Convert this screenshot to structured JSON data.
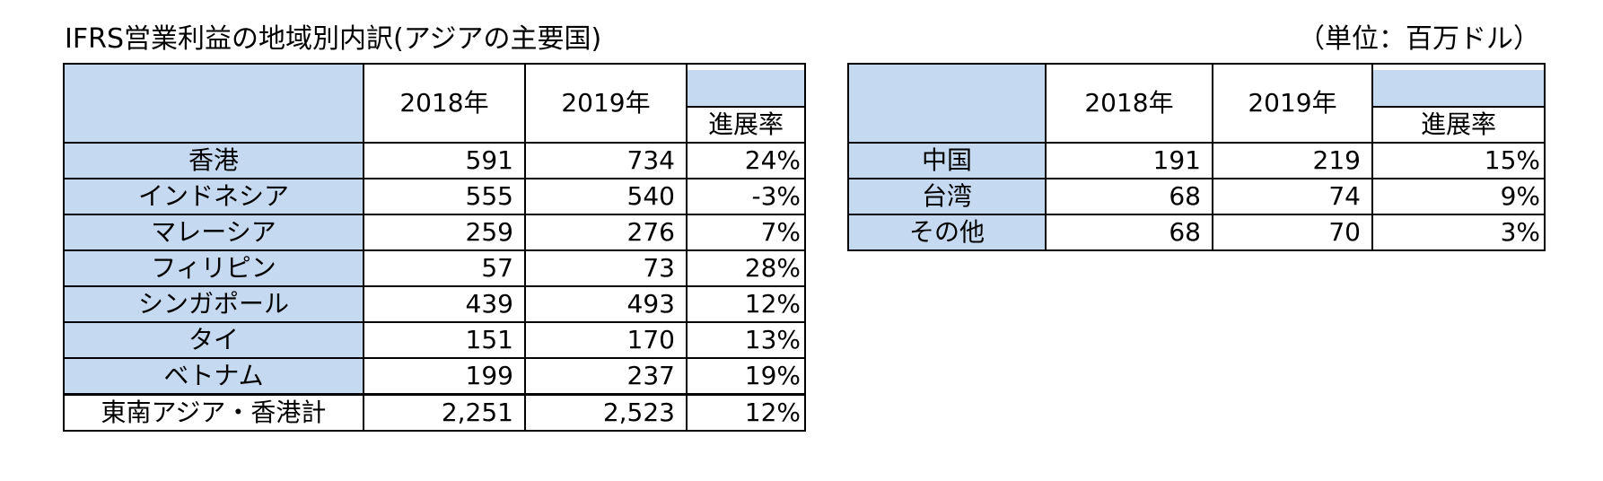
{
  "title": "IFRS営業利益の地域別内訳(アジアの主要国)",
  "unit": "（単位：百万ドル）",
  "headers": {
    "y2018": "2018年",
    "y2019": "2019年",
    "rate": "進展率"
  },
  "left_table": {
    "rows": [
      {
        "name": "香港",
        "v2018": "591",
        "v2019": "734",
        "rate": "24%"
      },
      {
        "name": "インドネシア",
        "v2018": "555",
        "v2019": "540",
        "rate": "-3%"
      },
      {
        "name": "マレーシア",
        "v2018": "259",
        "v2019": "276",
        "rate": "7%"
      },
      {
        "name": "フィリピン",
        "v2018": "57",
        "v2019": "73",
        "rate": "28%"
      },
      {
        "name": "シンガポール",
        "v2018": "439",
        "v2019": "493",
        "rate": "12%"
      },
      {
        "name": "タイ",
        "v2018": "151",
        "v2019": "170",
        "rate": "13%"
      },
      {
        "name": "ベトナム",
        "v2018": "199",
        "v2019": "237",
        "rate": "19%"
      }
    ],
    "total": {
      "name": "東南アジア・香港計",
      "v2018": "2,251",
      "v2019": "2,523",
      "rate": "12%"
    }
  },
  "right_table": {
    "rows": [
      {
        "name": "中国",
        "v2018": "191",
        "v2019": "219",
        "rate": "15%"
      },
      {
        "name": "台湾",
        "v2018": "68",
        "v2019": "74",
        "rate": "9%"
      },
      {
        "name": "その他",
        "v2018": "68",
        "v2019": "70",
        "rate": "3%"
      }
    ]
  }
}
